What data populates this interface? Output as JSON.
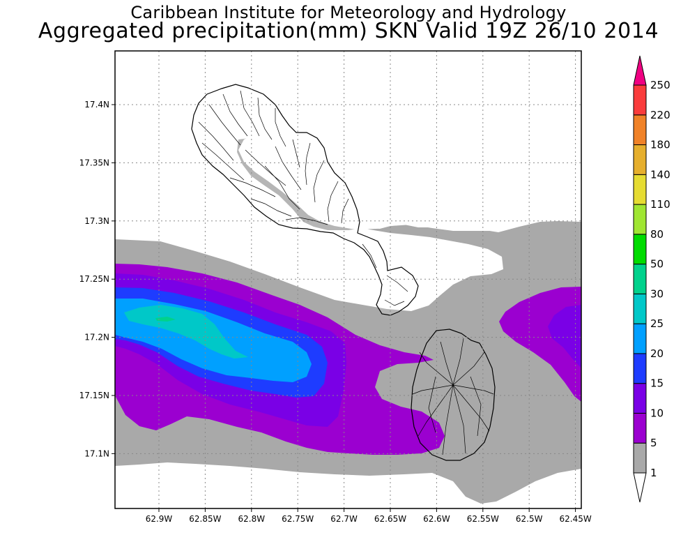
{
  "title": {
    "line1": "Caribbean Institute for Meteorology and Hydrology",
    "line2": "Aggregated precipitation(mm) SKN Valid 19Z 26/10 2014"
  },
  "axes": {
    "x_ticks": [
      "62.9W",
      "62.85W",
      "62.8W",
      "62.75W",
      "62.7W",
      "62.65W",
      "62.6W",
      "62.55W",
      "62.5W",
      "62.45W"
    ],
    "y_ticks": [
      "17.4N",
      "17.35N",
      "17.3N",
      "17.25N",
      "17.2N",
      "17.15N",
      "17.1N"
    ]
  },
  "colorbar": {
    "levels": [
      "1",
      "5",
      "10",
      "15",
      "20",
      "25",
      "30",
      "50",
      "80",
      "110",
      "140",
      "180",
      "220",
      "250"
    ],
    "colors": [
      "#ffffff",
      "#a9a9a9",
      "#9b00d0",
      "#7a00e6",
      "#1e3cff",
      "#00a0ff",
      "#00c8c8",
      "#00d28c",
      "#00dc00",
      "#a0e632",
      "#e6dc32",
      "#e6af2d",
      "#f08228",
      "#fa3c3c",
      "#f00082"
    ]
  },
  "map": {
    "features": [
      "St. Kitts",
      "Nevis"
    ]
  }
}
